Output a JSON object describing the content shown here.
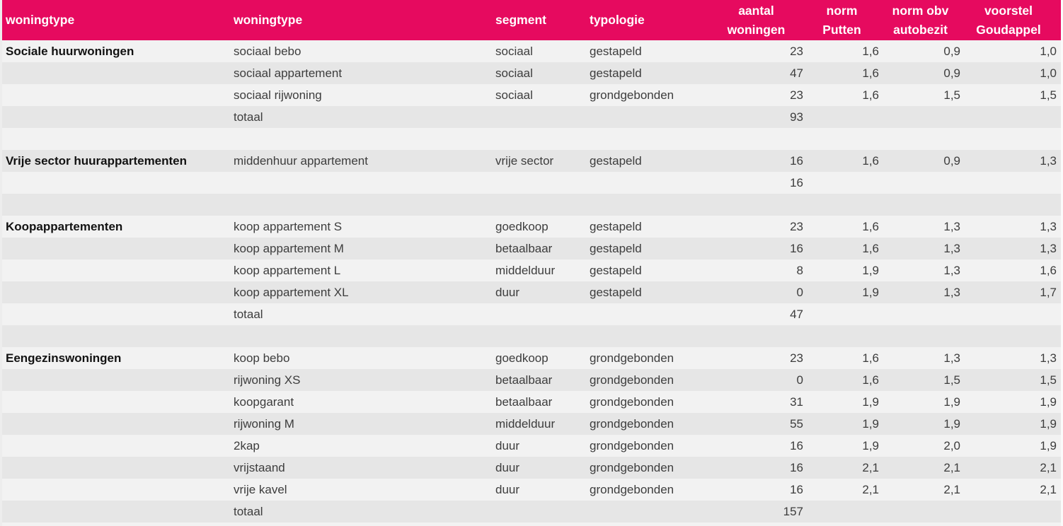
{
  "table": {
    "title": "woningtype-parkeernormen-tabel",
    "columns": [
      {
        "l1": "woningtype"
      },
      {
        "l1": "woningtype"
      },
      {
        "l1": "segment"
      },
      {
        "l1": "typologie"
      },
      {
        "l1": "aantal",
        "l2": "woningen"
      },
      {
        "l1": "norm",
        "l2": "Putten"
      },
      {
        "l1": "norm obv",
        "l2": "autobezit"
      },
      {
        "l1": "voorstel",
        "l2": "Goudappel"
      }
    ],
    "rows": [
      [
        "Sociale huurwoningen",
        "sociaal bebo",
        "sociaal",
        "gestapeld",
        "23",
        "1,6",
        "0,9",
        "1,0"
      ],
      [
        "",
        "sociaal appartement",
        "sociaal",
        "gestapeld",
        "47",
        "1,6",
        "0,9",
        "1,0"
      ],
      [
        "",
        "sociaal rijwoning",
        "sociaal",
        "grondgebonden",
        "23",
        "1,6",
        "1,5",
        "1,5"
      ],
      [
        "",
        "totaal",
        "",
        "",
        "93",
        "",
        "",
        ""
      ],
      [
        "",
        "",
        "",
        "",
        "",
        "",
        "",
        ""
      ],
      [
        "Vrije sector huurappartementen",
        "middenhuur appartement",
        "vrije sector",
        "gestapeld",
        "16",
        "1,6",
        "0,9",
        "1,3"
      ],
      [
        "",
        "",
        "",
        "",
        "16",
        "",
        "",
        ""
      ],
      [
        "",
        "",
        "",
        "",
        "",
        "",
        "",
        ""
      ],
      [
        "Koopappartementen",
        "koop appartement S",
        "goedkoop",
        "gestapeld",
        "23",
        "1,6",
        "1,3",
        "1,3"
      ],
      [
        "",
        "koop appartement M",
        "betaalbaar",
        "gestapeld",
        "16",
        "1,6",
        "1,3",
        "1,3"
      ],
      [
        "",
        "koop appartement L",
        "middelduur",
        "gestapeld",
        "8",
        "1,9",
        "1,3",
        "1,6"
      ],
      [
        "",
        "koop appartement XL",
        "duur",
        "gestapeld",
        "0",
        "1,9",
        "1,3",
        "1,7"
      ],
      [
        "",
        "totaal",
        "",
        "",
        "47",
        "",
        "",
        ""
      ],
      [
        "",
        "",
        "",
        "",
        "",
        "",
        "",
        ""
      ],
      [
        "Eengezinswoningen",
        "koop bebo",
        "goedkoop",
        "grondgebonden",
        "23",
        "1,6",
        "1,3",
        "1,3"
      ],
      [
        "",
        "rijwoning XS",
        "betaalbaar",
        "grondgebonden",
        "0",
        "1,6",
        "1,5",
        "1,5"
      ],
      [
        "",
        "koopgarant",
        "betaalbaar",
        "grondgebonden",
        "31",
        "1,9",
        "1,9",
        "1,9"
      ],
      [
        "",
        "rijwoning M",
        "middelduur",
        "grondgebonden",
        "55",
        "1,9",
        "1,9",
        "1,9"
      ],
      [
        "",
        "2kap",
        "duur",
        "grondgebonden",
        "16",
        "1,9",
        "2,0",
        "1,9"
      ],
      [
        "",
        "vrijstaand",
        "duur",
        "grondgebonden",
        "16",
        "2,1",
        "2,1",
        "2,1"
      ],
      [
        "",
        "vrije kavel",
        "duur",
        "grondgebonden",
        "16",
        "2,1",
        "2,1",
        "2,1"
      ],
      [
        "",
        "totaal",
        "",
        "",
        "157",
        "",
        "",
        ""
      ]
    ]
  },
  "colors": {
    "header_bg": "#E60A5F",
    "header_text": "#FFFFFF",
    "row_light": "#F2F2F2",
    "row_dark": "#E6E6E6",
    "body_text": "#3D3D3D",
    "group_text": "#121212"
  }
}
